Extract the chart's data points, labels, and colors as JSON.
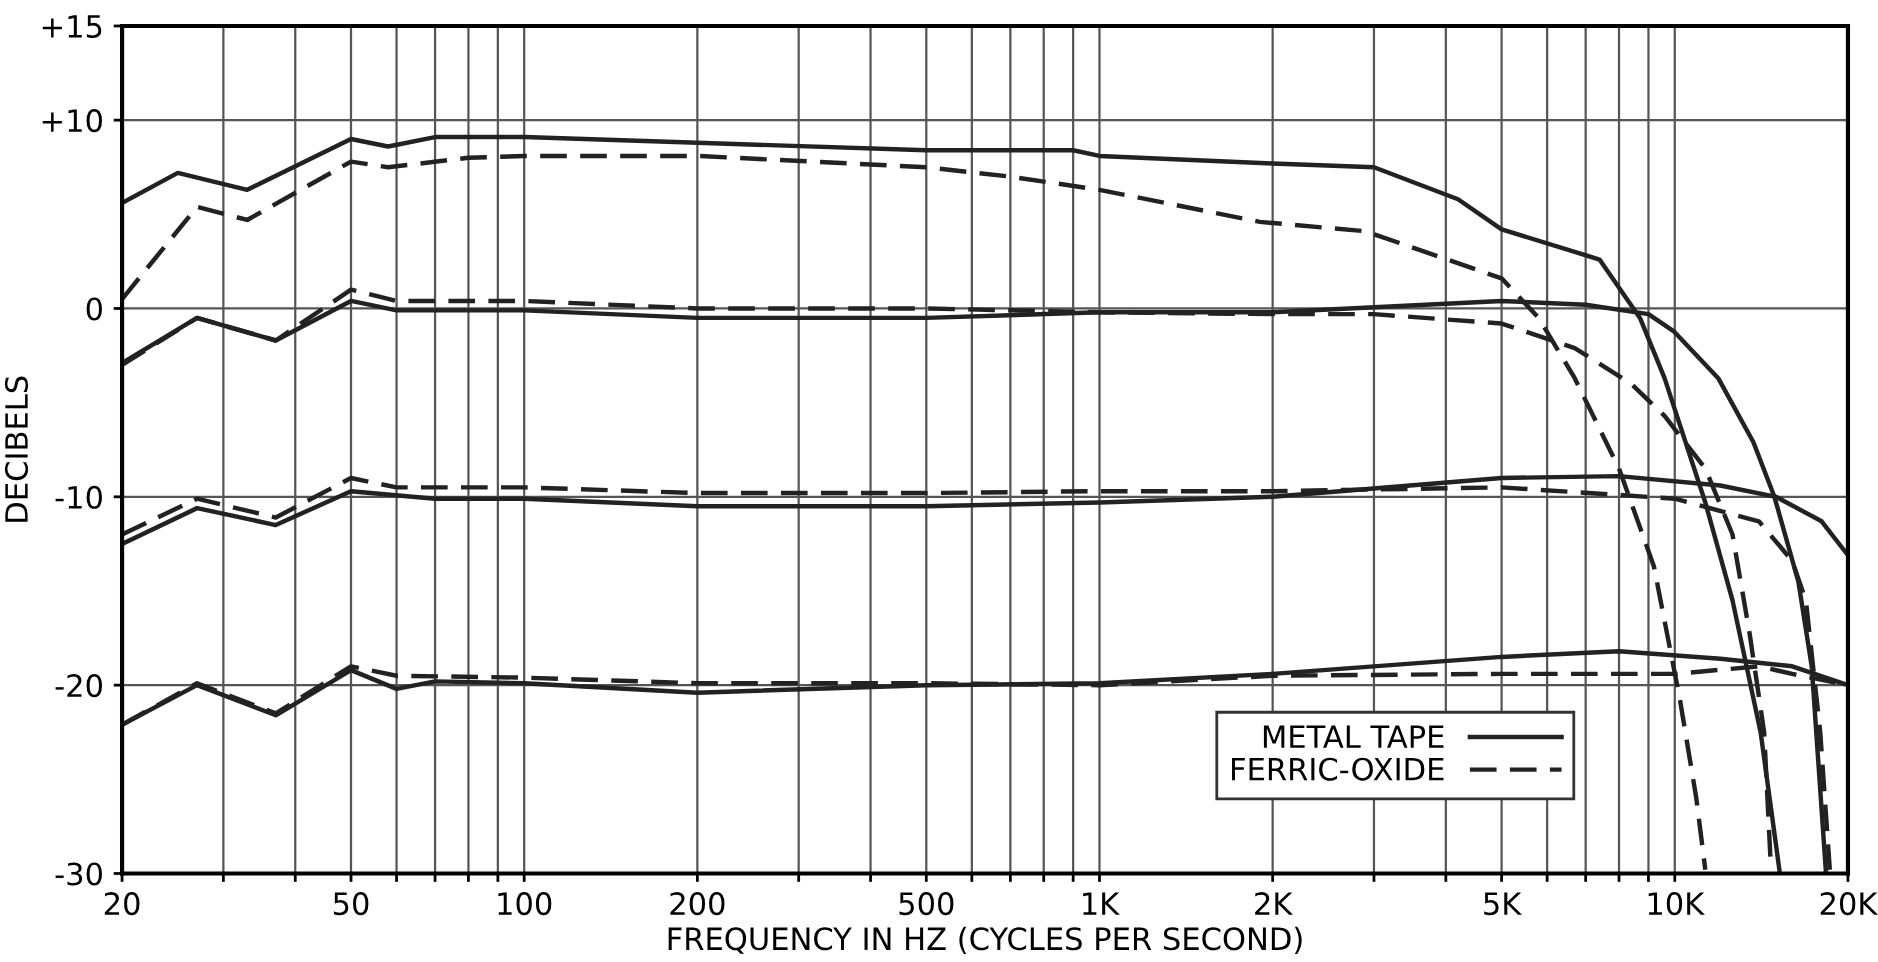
{
  "chart_data": {
    "type": "line",
    "xlabel": "FREQUENCY IN HZ (CYCLES PER SECOND)",
    "ylabel": "DECIBELS",
    "log": "x",
    "grid": true,
    "legend": "bottom right",
    "marker": "none",
    "xlim": [
      20,
      20000
    ],
    "ylim": [
      -30,
      15
    ],
    "xticks": [
      20,
      {
        "value": 30,
        "label": null
      },
      {
        "value": 40,
        "label": null
      },
      50,
      {
        "value": 60,
        "label": null
      },
      {
        "value": 70,
        "label": null
      },
      {
        "value": 80,
        "label": null
      },
      {
        "value": 90,
        "label": null
      },
      100,
      200,
      {
        "value": 300,
        "label": null
      },
      {
        "value": 400,
        "label": null
      },
      500,
      {
        "value": 600,
        "label": null
      },
      {
        "value": 700,
        "label": null
      },
      {
        "value": 800,
        "label": null
      },
      {
        "value": 900,
        "label": null
      },
      {
        "value": 1000,
        "label": "1K"
      },
      {
        "value": 2000,
        "label": "2K"
      },
      {
        "value": 3000,
        "label": null
      },
      {
        "value": 4000,
        "label": null
      },
      {
        "value": 5000,
        "label": "5K"
      },
      {
        "value": 6000,
        "label": null
      },
      {
        "value": 7000,
        "label": null
      },
      {
        "value": 8000,
        "label": null
      },
      {
        "value": 9000,
        "label": null
      },
      {
        "value": 10000,
        "label": "10K"
      },
      {
        "value": 20000,
        "label": "20K"
      }
    ],
    "yticks": [
      {
        "value": 15,
        "label": "+15"
      },
      {
        "value": 10,
        "label": "+10"
      },
      0,
      -10,
      -20,
      -30
    ],
    "series": [
      {
        "name": "METAL TAPE",
        "color": "#222222",
        "line_style": "solid",
        "x": [
          20,
          25,
          33,
          50,
          58,
          70,
          100,
          200,
          500,
          900,
          1000,
          2000,
          3000,
          4200,
          5000,
          7400,
          8700,
          9600,
          11300,
          12600,
          14100,
          15200
        ],
        "values": [
          5.6,
          7.2,
          6.3,
          9.0,
          8.6,
          9.1,
          9.1,
          8.8,
          8.4,
          8.4,
          8.1,
          7.7,
          7.5,
          5.8,
          4.2,
          2.6,
          -0.5,
          -3.7,
          -10.3,
          -15.5,
          -22.5,
          -29.8
        ]
      },
      {
        "name": "FERRIC-OXIDE",
        "color": "#222222",
        "line_style": "dashed",
        "x": [
          20,
          27,
          33,
          50,
          58,
          80,
          100,
          200,
          500,
          700,
          1000,
          1900,
          2900,
          5000,
          5800,
          6700,
          8000,
          9200,
          10200,
          10900,
          11300
        ],
        "values": [
          0.5,
          5.4,
          4.7,
          7.8,
          7.5,
          8.0,
          8.1,
          8.1,
          7.5,
          7.0,
          6.3,
          4.6,
          4.1,
          1.6,
          -0.5,
          -3.7,
          -8.5,
          -13.7,
          -20.7,
          -26.0,
          -29.8
        ]
      },
      {
        "color": "#222222",
        "line_style": "solid",
        "x": [
          20,
          27,
          37,
          50,
          60,
          100,
          200,
          500,
          1000,
          2000,
          5000,
          7000,
          9000,
          9950,
          11900,
          13700,
          14900,
          16400,
          17300,
          18300
        ],
        "values": [
          -2.9,
          -0.5,
          -1.7,
          0.4,
          -0.1,
          -0.1,
          -0.5,
          -0.5,
          -0.2,
          -0.2,
          0.4,
          0.2,
          -0.3,
          -1.2,
          -3.7,
          -7.1,
          -10.0,
          -14.5,
          -19.0,
          -29.8
        ]
      },
      {
        "color": "#222222",
        "line_style": "dashed",
        "x": [
          20,
          27,
          37,
          50,
          60,
          100,
          200,
          500,
          1000,
          2000,
          3000,
          5000,
          6700,
          8400,
          9600,
          11300,
          12600,
          13500,
          14300,
          14700
        ],
        "values": [
          -3.0,
          -0.5,
          -1.7,
          1.0,
          0.4,
          0.4,
          0.0,
          0.0,
          -0.2,
          -0.3,
          -0.3,
          -0.8,
          -2.1,
          -4.0,
          -5.7,
          -8.5,
          -12.0,
          -17.3,
          -22.5,
          -29.8
        ]
      },
      {
        "color": "#222222",
        "line_style": "solid",
        "x": [
          20,
          27,
          37,
          50,
          70,
          100,
          200,
          500,
          1000,
          2000,
          5000,
          8000,
          12000,
          15000,
          18000,
          20000
        ],
        "values": [
          -12.5,
          -10.6,
          -11.5,
          -9.7,
          -10.1,
          -10.1,
          -10.5,
          -10.5,
          -10.3,
          -10.0,
          -9.0,
          -8.9,
          -9.4,
          -10.0,
          -11.3,
          -13.1
        ]
      },
      {
        "color": "#222222",
        "line_style": "dashed",
        "x": [
          20,
          27,
          37,
          50,
          60,
          100,
          200,
          500,
          1000,
          2000,
          5000,
          8000,
          10000,
          14000,
          16000,
          16900,
          17900,
          18600
        ],
        "values": [
          -12.0,
          -10.1,
          -11.1,
          -9.0,
          -9.5,
          -9.5,
          -9.8,
          -9.8,
          -9.7,
          -9.7,
          -9.5,
          -9.9,
          -10.1,
          -11.3,
          -13.4,
          -15.5,
          -22.5,
          -29.8
        ]
      },
      {
        "color": "#222222",
        "line_style": "solid",
        "x": [
          20,
          27,
          37,
          50,
          60,
          70,
          100,
          200,
          500,
          1000,
          2000,
          5000,
          8000,
          12000,
          16000,
          20000
        ],
        "values": [
          -22.1,
          -20.0,
          -21.6,
          -19.2,
          -20.2,
          -19.8,
          -19.9,
          -20.4,
          -20.0,
          -19.9,
          -19.4,
          -18.5,
          -18.2,
          -18.6,
          -19.0,
          -20.0
        ]
      },
      {
        "color": "#222222",
        "line_style": "dashed",
        "x": [
          20,
          27,
          37,
          50,
          60,
          100,
          200,
          500,
          1000,
          2000,
          5000,
          10000,
          14000,
          16000,
          20000
        ],
        "values": [
          -22.1,
          -19.9,
          -21.5,
          -19.0,
          -19.5,
          -19.6,
          -19.9,
          -19.9,
          -20.0,
          -19.5,
          -19.4,
          -19.4,
          -19.0,
          -19.4,
          -20.0
        ]
      }
    ]
  }
}
